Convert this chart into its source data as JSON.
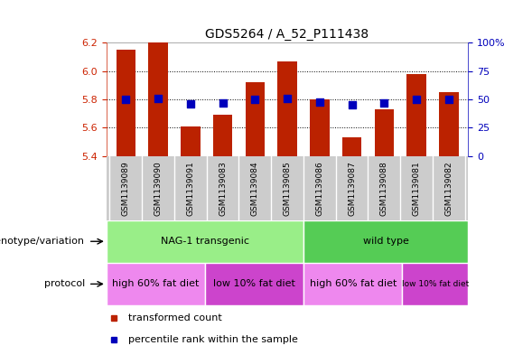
{
  "title": "GDS5264 / A_52_P111438",
  "samples": [
    "GSM1139089",
    "GSM1139090",
    "GSM1139091",
    "GSM1139083",
    "GSM1139084",
    "GSM1139085",
    "GSM1139086",
    "GSM1139087",
    "GSM1139088",
    "GSM1139081",
    "GSM1139082"
  ],
  "red_values": [
    6.15,
    6.2,
    5.61,
    5.69,
    5.92,
    6.07,
    5.8,
    5.53,
    5.73,
    5.98,
    5.85
  ],
  "blue_values": [
    50,
    51,
    46,
    47,
    50,
    51,
    48,
    45,
    47,
    50,
    50
  ],
  "ylim_left": [
    5.4,
    6.2
  ],
  "ylim_right": [
    0,
    100
  ],
  "yticks_left": [
    5.4,
    5.6,
    5.8,
    6.0,
    6.2
  ],
  "yticks_right": [
    0,
    25,
    50,
    75,
    100
  ],
  "ytick_labels_right": [
    "0",
    "25",
    "50",
    "75",
    "100%"
  ],
  "bar_color": "#bb2200",
  "dot_color": "#0000bb",
  "genotype_groups": [
    {
      "label": "NAG-1 transgenic",
      "start": 0,
      "end": 6,
      "color": "#99ee88"
    },
    {
      "label": "wild type",
      "start": 6,
      "end": 11,
      "color": "#55cc55"
    }
  ],
  "protocol_groups": [
    {
      "label": "high 60% fat diet",
      "start": 0,
      "end": 3,
      "color": "#ee88ee"
    },
    {
      "label": "low 10% fat diet",
      "start": 3,
      "end": 6,
      "color": "#cc44cc"
    },
    {
      "label": "high 60% fat diet",
      "start": 6,
      "end": 9,
      "color": "#ee88ee"
    },
    {
      "label": "low 10% fat diet",
      "start": 9,
      "end": 11,
      "color": "#cc44cc"
    }
  ],
  "legend_items": [
    {
      "label": "transformed count",
      "color": "#bb2200"
    },
    {
      "label": "percentile rank within the sample",
      "color": "#0000bb"
    }
  ],
  "bar_width": 0.6,
  "dot_size": 30,
  "background_color": "#ffffff",
  "left_axis_color": "#cc2200",
  "right_axis_color": "#0000bb",
  "sample_bg_color": "#cccccc",
  "label_left_genotype": "genotype/variation",
  "label_left_protocol": "protocol"
}
